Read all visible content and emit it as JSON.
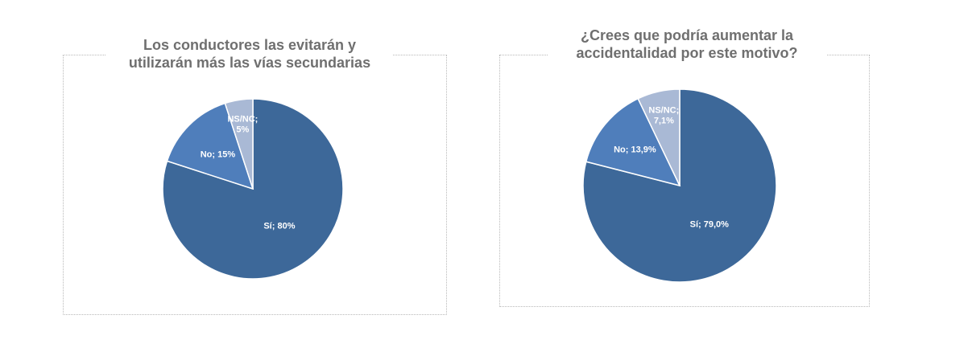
{
  "chart_data": [
    {
      "type": "pie",
      "title": "Los conductores las evitarán y utilizarán más las vías secundarias",
      "title_lines": [
        "Los conductores las evitarán y",
        "utilizarán más las vías secundarias"
      ],
      "slices": [
        {
          "label": "Sí",
          "value": 80,
          "text": "Sí; 80%",
          "color": "#3d6899"
        },
        {
          "label": "No",
          "value": 15,
          "text": "No; 15%",
          "color": "#4f7ebb"
        },
        {
          "label": "NS/NC",
          "value": 5,
          "text_lines": [
            "NS/NC;",
            "5%"
          ],
          "color": "#a9b9d5"
        }
      ]
    },
    {
      "type": "pie",
      "title": "¿Crees que podría aumentar la accidentalidad por este motivo?",
      "title_lines": [
        "¿Crees que podría aumentar la",
        "accidentalidad por este motivo?"
      ],
      "slices": [
        {
          "label": "Sí",
          "value": 79.0,
          "text": "Sí; 79,0%",
          "color": "#3d6899"
        },
        {
          "label": "No",
          "value": 13.9,
          "text": "No; 13,9%",
          "color": "#4f7ebb"
        },
        {
          "label": "NS/NC",
          "value": 7.1,
          "text_lines": [
            "NS/NC;",
            "7,1%"
          ],
          "color": "#a9b9d5"
        }
      ]
    }
  ]
}
